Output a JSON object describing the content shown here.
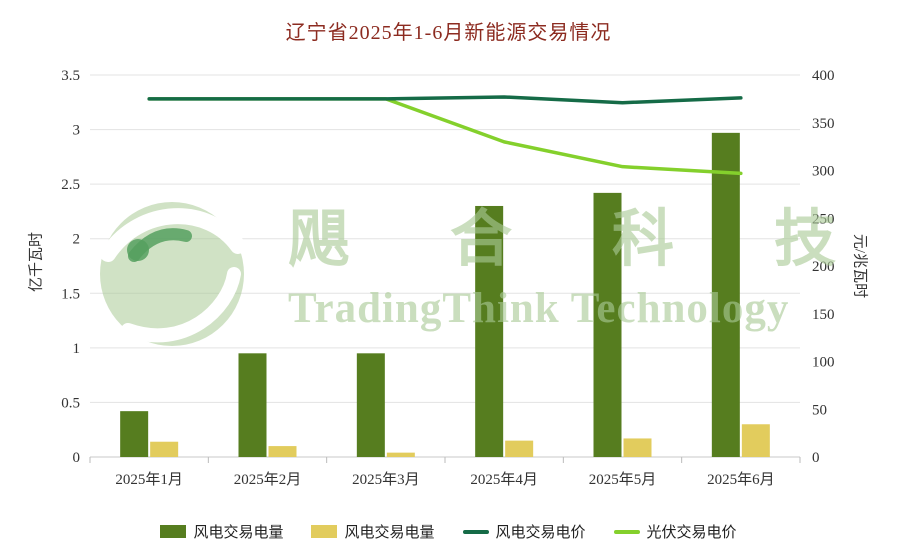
{
  "title": "辽宁省2025年1-6月新能源交易情况",
  "watermark": {
    "cn": "飓合科技",
    "en": "TradingThink Technology"
  },
  "chart_data": {
    "type": "bar+line",
    "title": "辽宁省2025年1-6月新能源交易情况",
    "categories": [
      "2025年1月",
      "2025年2月",
      "2025年3月",
      "2025年4月",
      "2025年5月",
      "2025年6月"
    ],
    "left_axis": {
      "label": "亿千瓦时",
      "min": 0,
      "max": 3.5,
      "step": 0.5
    },
    "right_axis": {
      "label": "元/兆瓦时",
      "min": 0,
      "max": 400,
      "step": 50
    },
    "grid": true,
    "legend_position": "bottom",
    "series": [
      {
        "name": "风电交易电量",
        "type": "bar",
        "axis": "left",
        "color": "#567d1f",
        "values": [
          0.42,
          0.95,
          0.95,
          2.3,
          2.42,
          2.97
        ]
      },
      {
        "name": "风电交易电量",
        "type": "bar",
        "axis": "left",
        "color": "#e2cc5d",
        "values": [
          0.14,
          0.1,
          0.04,
          0.15,
          0.17,
          0.3
        ]
      },
      {
        "name": "风电交易电价",
        "type": "line",
        "axis": "right",
        "color": "#156b47",
        "values": [
          375,
          375,
          375,
          377,
          371,
          376
        ]
      },
      {
        "name": "光伏交易电价",
        "type": "line",
        "axis": "right",
        "color": "#84d02c",
        "values": [
          375,
          375,
          375,
          330,
          304,
          297
        ]
      }
    ]
  }
}
